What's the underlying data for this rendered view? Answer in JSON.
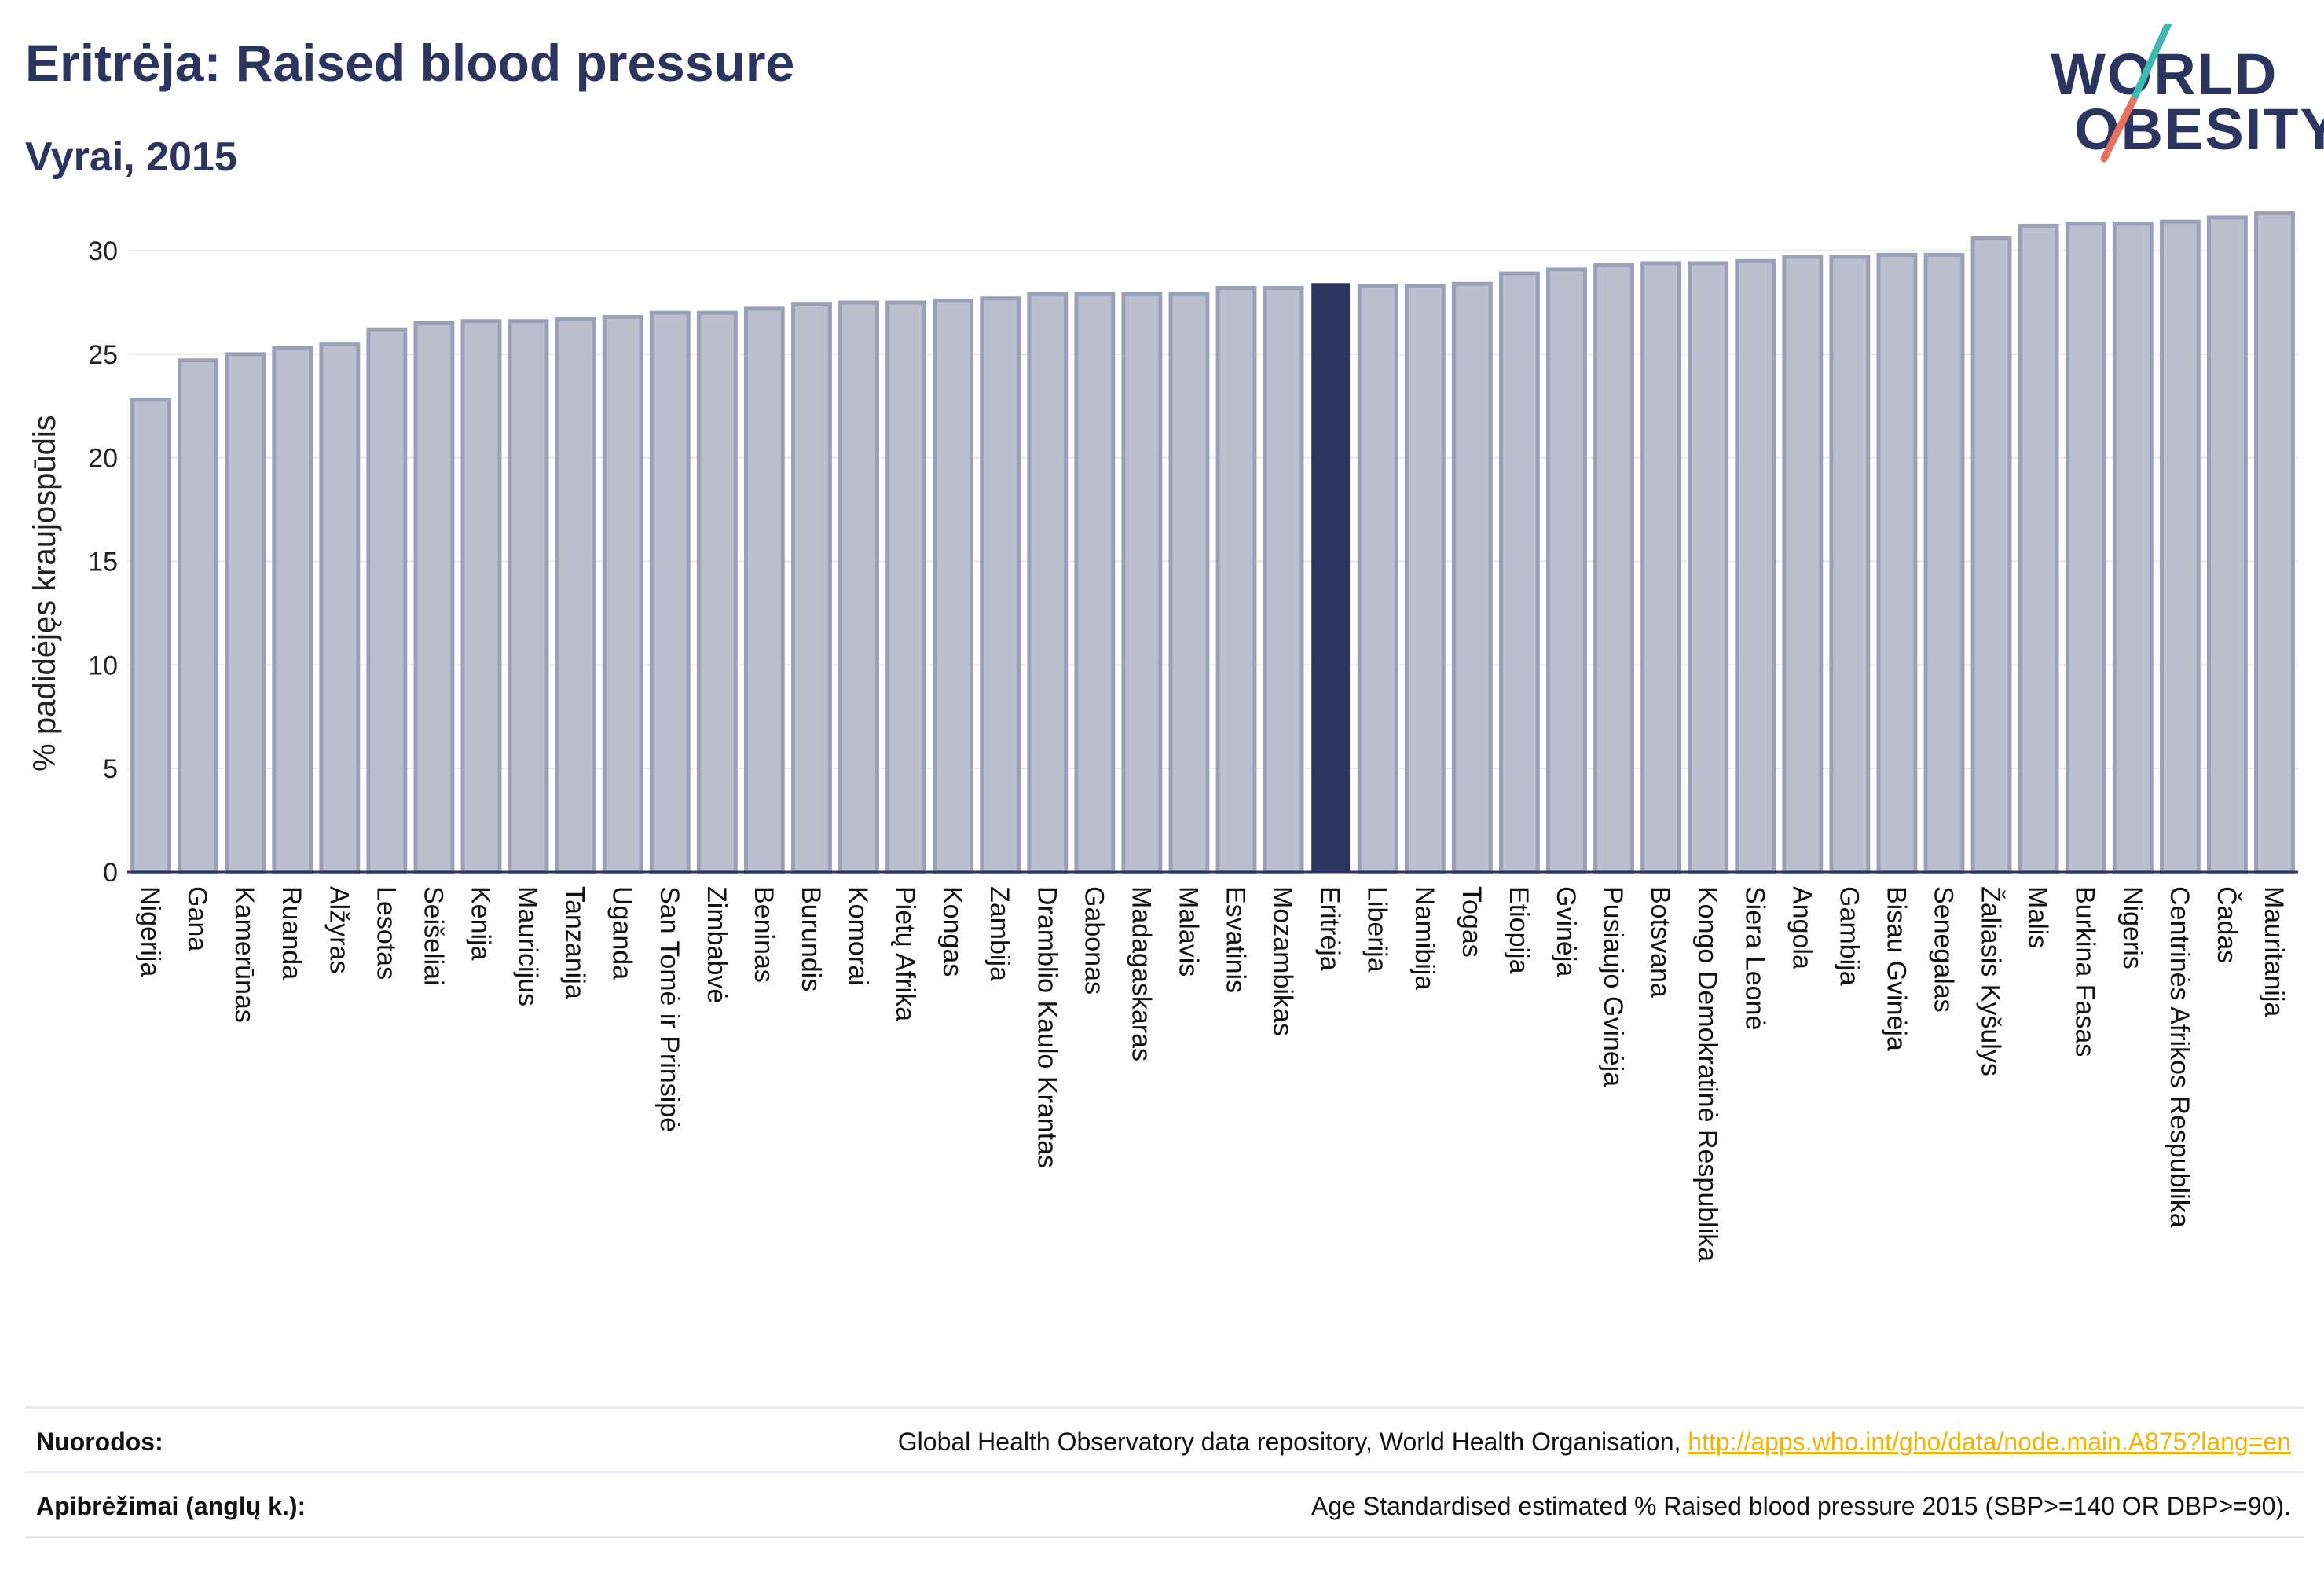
{
  "header": {
    "title": "Eritrėja: Raised blood pressure",
    "subtitle": "Vyrai, 2015"
  },
  "logo": {
    "line1": "WORLD",
    "line2": "OBESITY"
  },
  "colors": {
    "bar": "#bcc0ce",
    "bar_border": "#9aa0b8",
    "highlight": "#2b3560",
    "text": "#2b3560",
    "link": "#f2b400"
  },
  "chart_data": {
    "type": "bar",
    "ylabel": "% padidėjęs kraujospūdis",
    "ylim": [
      0,
      33
    ],
    "yticks": [
      0,
      5,
      10,
      15,
      20,
      25,
      30
    ],
    "grid": true,
    "highlight": "Eritrėja",
    "categories": [
      "Nigerija",
      "Gana",
      "Kamerūnas",
      "Ruanda",
      "Alžyras",
      "Lesotas",
      "Seišeliai",
      "Kenija",
      "Mauricijus",
      "Tanzanija",
      "Uganda",
      "San Tomė ir Prinsipė",
      "Zimbabvė",
      "Beninas",
      "Burundis",
      "Komorai",
      "Pietų Afrika",
      "Kongas",
      "Zambija",
      "Dramblio Kaulo Krantas",
      "Gabonas",
      "Madagaskaras",
      "Malavis",
      "Esvatinis",
      "Mozambikas",
      "Eritrėja",
      "Liberija",
      "Namibija",
      "Togas",
      "Etiopija",
      "Gvinėja",
      "Pusiaujo Gvinėja",
      "Botsvana",
      "Kongo Demokratinė Respublika",
      "Siera Leonė",
      "Angola",
      "Gambija",
      "Bisau Gvinėja",
      "Senegalas",
      "Žaliasis Kyšulys",
      "Malis",
      "Burkina Fasas",
      "Nigeris",
      "Centrinės Afrikos Respublika",
      "Čadas",
      "Mauritanija"
    ],
    "values": [
      22.8,
      24.7,
      25.0,
      25.3,
      25.5,
      26.2,
      26.5,
      26.6,
      26.6,
      26.7,
      26.8,
      27.0,
      27.0,
      27.2,
      27.4,
      27.5,
      27.5,
      27.6,
      27.7,
      27.9,
      27.9,
      27.9,
      27.9,
      28.2,
      28.2,
      28.4,
      28.3,
      28.3,
      28.4,
      28.9,
      29.1,
      29.3,
      29.4,
      29.4,
      29.5,
      29.7,
      29.7,
      29.8,
      29.8,
      30.6,
      31.2,
      31.3,
      31.3,
      31.4,
      31.6,
      31.8
    ]
  },
  "footer": {
    "sources_label": "Nuorodos:",
    "sources_text": "Global Health Observatory data repository, World Health Organisation, ",
    "sources_link": "http://apps.who.int/gho/data/node.main.A875?lang=en",
    "definitions_label": "Apibrėžimai (anglų k.):",
    "definitions_text": "Age Standardised estimated % Raised blood pressure 2015 (SBP>=140 OR DBP>=90)."
  }
}
